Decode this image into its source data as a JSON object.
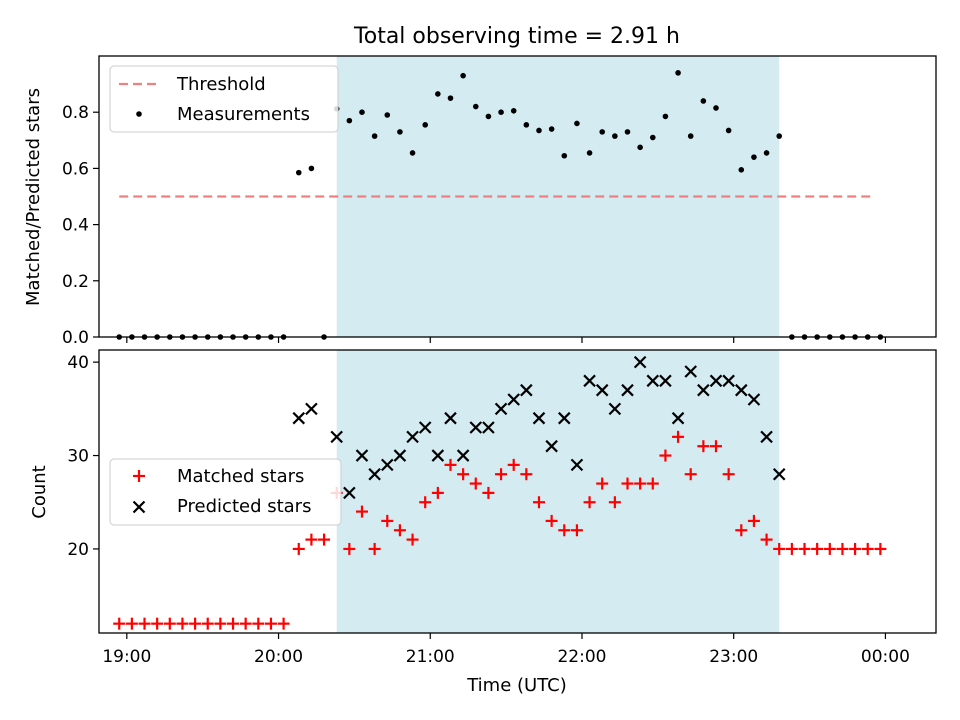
{
  "chart_data": {
    "title": "Total observing time = 2.91 h",
    "xlabel": "Time (UTC)",
    "x_ticks": [
      "19:00",
      "20:00",
      "21:00",
      "22:00",
      "23:00",
      "00:00"
    ],
    "x_tick_values": [
      0,
      60,
      120,
      180,
      240,
      300
    ],
    "xlim": [
      -11,
      320
    ],
    "observing_window": [
      83,
      258
    ],
    "window_color": "#add8e6",
    "panels": [
      {
        "type": "scatter",
        "ylabel": "Matched/Predicted stars",
        "ylim": [
          0,
          1.0
        ],
        "y_ticks": [
          0.0,
          0.2,
          0.4,
          0.6,
          0.8
        ],
        "y_tick_labels": [
          "0.0",
          "0.2",
          "0.4",
          "0.6",
          "0.8"
        ],
        "legend_position": "top-left",
        "threshold": {
          "name": "Threshold",
          "value": 0.5,
          "x_range": [
            -3,
            296
          ],
          "color": "#f08080"
        },
        "series": [
          {
            "name": "Measurements",
            "color": "#000000",
            "marker": "dot",
            "x": [
              -3,
              2,
              7,
              12,
              17,
              22,
              27,
              32,
              37,
              42,
              47,
              52,
              57,
              62,
              68,
              73,
              78,
              83,
              88,
              93,
              98,
              103,
              108,
              113,
              118,
              123,
              128,
              133,
              138,
              143,
              148,
              153,
              158,
              163,
              168,
              173,
              178,
              183,
              188,
              193,
              198,
              203,
              208,
              213,
              218,
              223,
              228,
              233,
              238,
              243,
              248,
              253,
              258,
              263,
              268,
              273,
              278,
              283,
              288,
              293,
              298
            ],
            "y": [
              0,
              0,
              0,
              0,
              0,
              0,
              0,
              0,
              0,
              0,
              0,
              0,
              0,
              0,
              0.585,
              0.6,
              0,
              0.812,
              0.77,
              0.8,
              0.715,
              0.79,
              0.73,
              0.655,
              0.755,
              0.865,
              0.85,
              0.93,
              0.82,
              0.785,
              0.8,
              0.805,
              0.755,
              0.735,
              0.74,
              0.645,
              0.76,
              0.655,
              0.73,
              0.715,
              0.73,
              0.675,
              0.71,
              0.785,
              0.94,
              0.715,
              0.84,
              0.815,
              0.735,
              0.595,
              0.64,
              0.655,
              0.715,
              0,
              0,
              0,
              0,
              0,
              0,
              0,
              0
            ]
          }
        ]
      },
      {
        "type": "scatter",
        "ylabel": "Count",
        "ylim": [
          11,
          41.3
        ],
        "y_ticks": [
          20,
          30,
          40
        ],
        "y_tick_labels": [
          "20",
          "30",
          "40"
        ],
        "legend_position": "center-left",
        "series": [
          {
            "name": "Matched stars",
            "color": "#ff0000",
            "marker": "plus",
            "x": [
              -3,
              2,
              7,
              12,
              17,
              22,
              27,
              32,
              37,
              42,
              47,
              52,
              57,
              62,
              68,
              73,
              78,
              83,
              88,
              93,
              98,
              103,
              108,
              113,
              118,
              123,
              128,
              133,
              138,
              143,
              148,
              153,
              158,
              163,
              168,
              173,
              178,
              183,
              188,
              193,
              198,
              203,
              208,
              213,
              218,
              223,
              228,
              233,
              238,
              243,
              248,
              253,
              258,
              263,
              268,
              273,
              278,
              283,
              288,
              293,
              298
            ],
            "y": [
              12,
              12,
              12,
              12,
              12,
              12,
              12,
              12,
              12,
              12,
              12,
              12,
              12,
              12,
              20,
              21,
              21,
              26,
              20,
              24,
              20,
              23,
              22,
              21,
              25,
              26,
              29,
              28,
              27,
              26,
              28,
              29,
              28,
              25,
              23,
              22,
              22,
              25,
              27,
              25,
              27,
              27,
              27,
              30,
              32,
              28,
              31,
              31,
              28,
              22,
              23,
              21,
              20,
              20,
              20,
              20,
              20,
              20,
              20,
              20,
              20
            ]
          },
          {
            "name": "Predicted stars",
            "color": "#000000",
            "marker": "x",
            "x": [
              68,
              73,
              83,
              88,
              93,
              98,
              103,
              108,
              113,
              118,
              123,
              128,
              133,
              138,
              143,
              148,
              153,
              158,
              163,
              168,
              173,
              178,
              183,
              188,
              193,
              198,
              203,
              208,
              213,
              218,
              223,
              228,
              233,
              238,
              243,
              248,
              253,
              258
            ],
            "y": [
              34,
              35,
              32,
              26,
              30,
              28,
              29,
              30,
              32,
              33,
              30,
              34,
              30,
              33,
              33,
              35,
              36,
              37,
              34,
              31,
              34,
              29,
              38,
              37,
              35,
              37,
              40,
              38,
              38,
              34,
              39,
              37,
              38,
              38,
              37,
              36,
              32,
              28
            ]
          }
        ]
      }
    ]
  }
}
